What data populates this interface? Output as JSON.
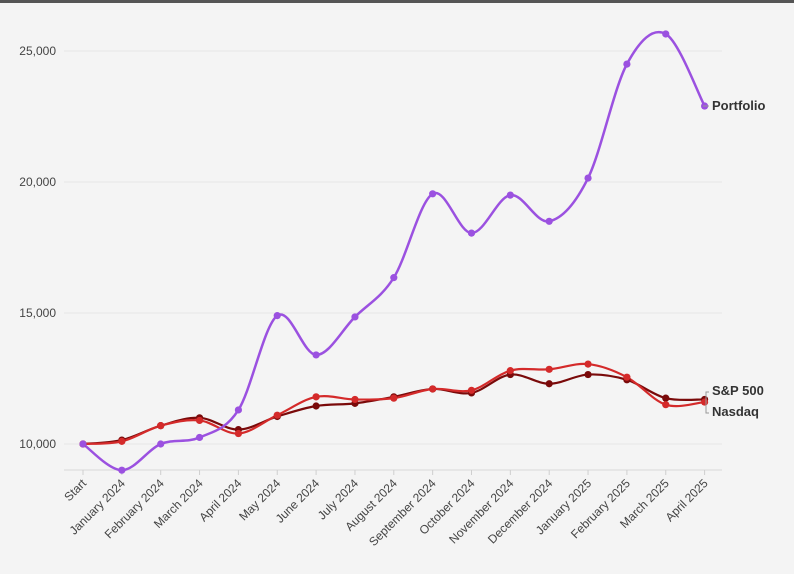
{
  "chart_data": {
    "type": "line",
    "title": "",
    "xlabel": "",
    "ylabel": "",
    "ylim": [
      9000,
      26500
    ],
    "yticks": [
      10000,
      15000,
      20000,
      25000
    ],
    "ytick_labels": [
      "10,000",
      "15,000",
      "20,000",
      "25,000"
    ],
    "categories": [
      "Start",
      "January 2024",
      "February 2024",
      "March 2024",
      "April 2024",
      "May 2024",
      "June 2024",
      "July 2024",
      "August 2024",
      "September 2024",
      "October 2024",
      "November 2024",
      "December 2024",
      "January 2025",
      "February 2025",
      "March 2025",
      "April 2025"
    ],
    "series": [
      {
        "name": "Portfolio",
        "color": "#9b51e0",
        "values": [
          10000,
          9000,
          10000,
          10250,
          11300,
          14900,
          13400,
          14850,
          16350,
          19550,
          18050,
          19500,
          18500,
          20150,
          24500,
          25650,
          22900
        ]
      },
      {
        "name": "S&P 500",
        "color": "#7a0a0a",
        "values": [
          10000,
          10150,
          10700,
          11000,
          10550,
          11050,
          11450,
          11550,
          11800,
          12100,
          11950,
          12650,
          12300,
          12650,
          12450,
          11750,
          11700
        ]
      },
      {
        "name": "Nasdaq",
        "color": "#d42a2a",
        "values": [
          10000,
          10100,
          10700,
          10900,
          10400,
          11100,
          11800,
          11700,
          11750,
          12100,
          12050,
          12800,
          12850,
          13050,
          12550,
          11500,
          11600
        ]
      }
    ]
  },
  "legend": {
    "portfolio": "Portfolio",
    "sp500": "S&P 500",
    "nasdaq": "Nasdaq"
  }
}
